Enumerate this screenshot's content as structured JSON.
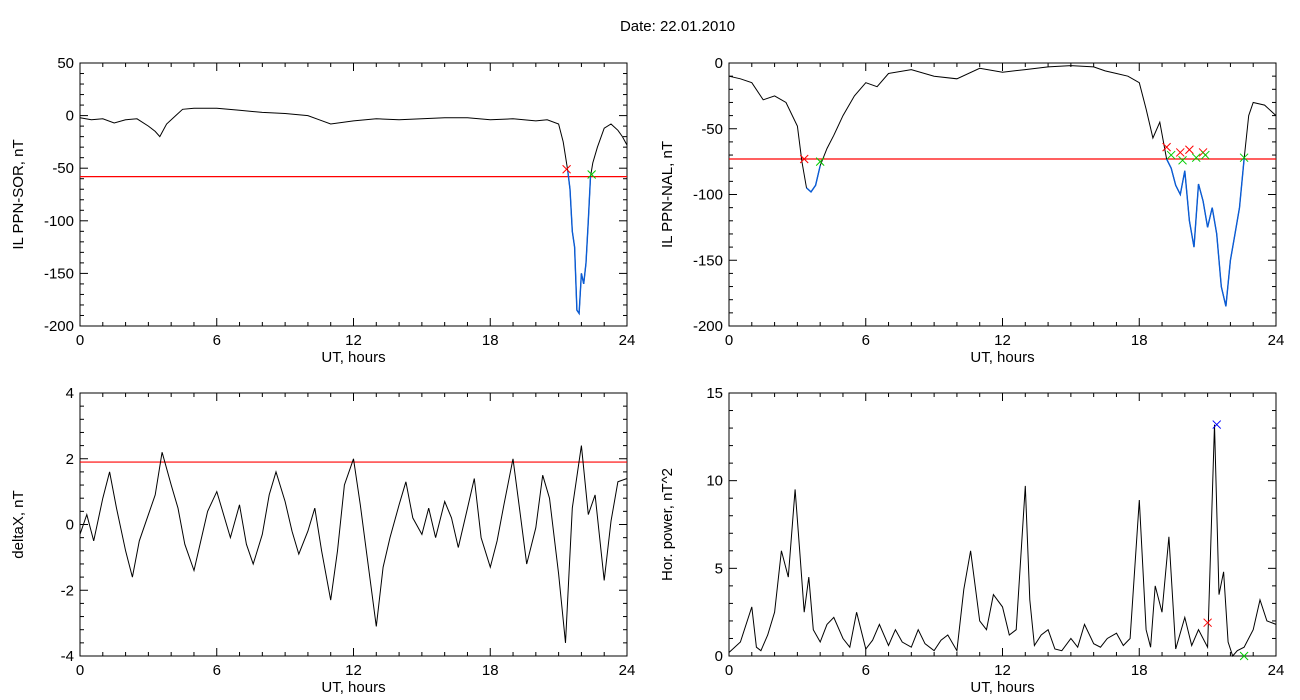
{
  "figure": {
    "date_label": "Date:",
    "date_value": "22.01.2010",
    "colors": {
      "trace": "#000000",
      "threshold": "#ff0000",
      "event": "#0a5cd6",
      "marker_start": "#ff0000",
      "marker_end": "#00cc00",
      "marker_peak": "#0000ff"
    }
  },
  "chart_data": [
    {
      "type": "line",
      "panel": "top-left",
      "xlabel": "UT, hours",
      "ylabel": "IL PPN-SOR, nT",
      "xlim": [
        0,
        24
      ],
      "ylim": [
        -200,
        50
      ],
      "xticks": [
        0,
        6,
        12,
        18,
        24
      ],
      "yticks": [
        50,
        0,
        -50,
        -100,
        -150,
        -200
      ],
      "threshold": -58,
      "series": [
        {
          "x": [
            0,
            0.5,
            1,
            1.5,
            2,
            2.5,
            3,
            3.3,
            3.5,
            3.8,
            4.2,
            4.5,
            5,
            6,
            7,
            8,
            9,
            10,
            10.5,
            11,
            12,
            13,
            14,
            15,
            16,
            17,
            18,
            19,
            20,
            20.5,
            21,
            21.2,
            21.4,
            21.5,
            21.6,
            21.7,
            21.8,
            21.9,
            22,
            22.1,
            22.2,
            22.3,
            22.4,
            22.5,
            22.7,
            23,
            23.3,
            23.6,
            23.8,
            24
          ],
          "y": [
            -2,
            -4,
            -3,
            -7,
            -4,
            -3,
            -10,
            -15,
            -20,
            -8,
            0,
            6,
            7,
            7,
            5,
            3,
            2,
            0,
            -4,
            -8,
            -5,
            -3,
            -4,
            -3,
            -2,
            -2,
            -4,
            -3,
            -5,
            -4,
            -8,
            -25,
            -52,
            -70,
            -110,
            -125,
            -185,
            -188,
            -150,
            -160,
            -140,
            -100,
            -58,
            -45,
            -30,
            -12,
            -8,
            -14,
            -20,
            -28
          ]
        }
      ],
      "event_segments": [
        [
          21.4,
          22.4
        ]
      ],
      "markers": [
        {
          "x": 21.35,
          "y": -51,
          "type": "start"
        },
        {
          "x": 22.45,
          "y": -56,
          "type": "end"
        }
      ]
    },
    {
      "type": "line",
      "panel": "top-right",
      "xlabel": "UT, hours",
      "ylabel": "IL PPN-NAL, nT",
      "xlim": [
        0,
        24
      ],
      "ylim": [
        -200,
        0
      ],
      "xticks": [
        0,
        6,
        12,
        18,
        24
      ],
      "yticks": [
        0,
        -50,
        -100,
        -150,
        -200
      ],
      "threshold": -73,
      "series": [
        {
          "x": [
            0,
            0.5,
            1,
            1.5,
            2,
            2.5,
            3,
            3.2,
            3.4,
            3.6,
            3.8,
            4,
            4.3,
            4.6,
            5,
            5.5,
            6,
            6.5,
            7,
            8,
            9,
            10,
            11,
            12,
            13,
            14,
            15,
            16,
            16.5,
            17,
            17.5,
            18,
            18.3,
            18.6,
            18.9,
            19.2,
            19.4,
            19.6,
            19.8,
            20,
            20.2,
            20.4,
            20.6,
            20.8,
            21,
            21.2,
            21.4,
            21.6,
            21.8,
            22,
            22.2,
            22.4,
            22.6,
            22.8,
            23,
            23.5,
            24
          ],
          "y": [
            -10,
            -12,
            -15,
            -28,
            -25,
            -30,
            -48,
            -75,
            -95,
            -98,
            -93,
            -78,
            -65,
            -55,
            -40,
            -25,
            -15,
            -18,
            -8,
            -5,
            -10,
            -12,
            -4,
            -7,
            -5,
            -3,
            -2,
            -3,
            -6,
            -8,
            -10,
            -15,
            -35,
            -57,
            -45,
            -73,
            -80,
            -93,
            -100,
            -82,
            -120,
            -140,
            -92,
            -105,
            -125,
            -110,
            -130,
            -170,
            -185,
            -150,
            -130,
            -110,
            -73,
            -40,
            -30,
            -32,
            -40
          ]
        }
      ],
      "event_segments": [
        [
          3.3,
          4.0
        ],
        [
          19.2,
          22.6
        ]
      ],
      "markers": [
        {
          "x": 3.3,
          "y": -73,
          "type": "start"
        },
        {
          "x": 4.0,
          "y": -75,
          "type": "end"
        },
        {
          "x": 19.2,
          "y": -64,
          "type": "start"
        },
        {
          "x": 19.4,
          "y": -70,
          "type": "end"
        },
        {
          "x": 19.8,
          "y": -68,
          "type": "start"
        },
        {
          "x": 19.9,
          "y": -74,
          "type": "end"
        },
        {
          "x": 20.2,
          "y": -66,
          "type": "start"
        },
        {
          "x": 20.5,
          "y": -72,
          "type": "end"
        },
        {
          "x": 20.8,
          "y": -68,
          "type": "start"
        },
        {
          "x": 20.9,
          "y": -70,
          "type": "end"
        },
        {
          "x": 22.6,
          "y": -72,
          "type": "end"
        }
      ]
    },
    {
      "type": "line",
      "panel": "bottom-left",
      "xlabel": "UT, hours",
      "ylabel": "deltaX, nT",
      "xlim": [
        0,
        24
      ],
      "ylim": [
        -4,
        4
      ],
      "xticks": [
        0,
        6,
        12,
        18,
        24
      ],
      "yticks": [
        4,
        2,
        0,
        -2,
        -4
      ],
      "threshold": 1.9,
      "series": [
        {
          "x": [
            0,
            0.3,
            0.6,
            1,
            1.3,
            1.6,
            2,
            2.3,
            2.6,
            3,
            3.3,
            3.6,
            4,
            4.3,
            4.6,
            5,
            5.3,
            5.6,
            6,
            6.3,
            6.6,
            7,
            7.3,
            7.6,
            8,
            8.3,
            8.6,
            9,
            9.3,
            9.6,
            10,
            10.3,
            10.6,
            11,
            11.3,
            11.6,
            12,
            12.3,
            12.6,
            13,
            13.3,
            13.6,
            14,
            14.3,
            14.6,
            15,
            15.3,
            15.6,
            16,
            16.3,
            16.6,
            17,
            17.3,
            17.6,
            18,
            18.3,
            18.6,
            19,
            19.3,
            19.6,
            20,
            20.3,
            20.6,
            21,
            21.3,
            21.6,
            22,
            22.3,
            22.6,
            23,
            23.3,
            23.6,
            24
          ],
          "y": [
            -0.3,
            0.3,
            -0.5,
            0.8,
            1.6,
            0.5,
            -0.8,
            -1.6,
            -0.5,
            0.3,
            0.9,
            2.2,
            1.2,
            0.5,
            -0.6,
            -1.4,
            -0.5,
            0.4,
            1.0,
            0.3,
            -0.4,
            0.6,
            -0.6,
            -1.2,
            -0.3,
            0.9,
            1.6,
            0.7,
            -0.2,
            -0.9,
            -0.2,
            0.5,
            -0.8,
            -2.3,
            -0.8,
            1.2,
            2.0,
            0.6,
            -1.0,
            -3.1,
            -1.3,
            -0.4,
            0.6,
            1.3,
            0.2,
            -0.3,
            0.5,
            -0.4,
            0.7,
            0.2,
            -0.7,
            0.5,
            1.4,
            -0.4,
            -1.3,
            -0.5,
            0.6,
            2.0,
            0.4,
            -1.2,
            -0.1,
            1.5,
            0.8,
            -1.5,
            -3.6,
            0.5,
            2.4,
            0.3,
            0.9,
            -1.7,
            0.1,
            1.3,
            1.4
          ]
        }
      ],
      "event_segments": [],
      "markers": []
    },
    {
      "type": "line",
      "panel": "bottom-right",
      "xlabel": "UT, hours",
      "ylabel": "Hor. power, nT^2",
      "xlim": [
        0,
        24
      ],
      "ylim": [
        0,
        15
      ],
      "xticks": [
        0,
        6,
        12,
        18,
        24
      ],
      "yticks": [
        15,
        10,
        5,
        0
      ],
      "threshold": null,
      "series": [
        {
          "x": [
            0,
            0.5,
            1,
            1.2,
            1.4,
            1.7,
            2,
            2.3,
            2.6,
            2.9,
            3.1,
            3.3,
            3.5,
            3.7,
            4,
            4.3,
            4.6,
            5,
            5.3,
            5.6,
            6,
            6.3,
            6.6,
            7,
            7.3,
            7.6,
            8,
            8.3,
            8.6,
            9,
            9.3,
            9.6,
            10,
            10.3,
            10.6,
            11,
            11.3,
            11.6,
            12,
            12.3,
            12.6,
            13,
            13.2,
            13.4,
            13.7,
            14,
            14.3,
            14.6,
            15,
            15.3,
            15.6,
            16,
            16.3,
            16.6,
            17,
            17.3,
            17.6,
            18,
            18.3,
            18.5,
            18.7,
            19,
            19.3,
            19.6,
            20,
            20.3,
            20.6,
            21,
            21.3,
            21.5,
            21.7,
            21.9,
            22.1,
            22.3,
            22.6,
            23,
            23.3,
            23.6,
            24
          ],
          "y": [
            0.2,
            0.8,
            2.8,
            0.5,
            0.3,
            1.2,
            2.5,
            6.0,
            4.5,
            9.5,
            6.0,
            2.5,
            4.5,
            1.5,
            0.8,
            1.8,
            2.2,
            1.0,
            0.5,
            2.5,
            0.4,
            0.9,
            1.8,
            0.6,
            1.5,
            0.8,
            0.5,
            1.5,
            0.7,
            0.3,
            0.9,
            1.2,
            0.3,
            3.8,
            6.0,
            2.0,
            1.5,
            3.5,
            2.8,
            1.2,
            1.5,
            9.7,
            3.2,
            0.6,
            1.2,
            1.5,
            0.4,
            0.3,
            1.0,
            0.5,
            1.8,
            0.7,
            0.5,
            1.0,
            1.3,
            0.6,
            1.0,
            8.9,
            1.5,
            0.5,
            4.0,
            2.5,
            6.8,
            0.4,
            2.2,
            0.6,
            1.5,
            0.5,
            13.2,
            3.5,
            4.8,
            0.8,
            0.0,
            0.3,
            0.5,
            1.5,
            3.2,
            2.0,
            1.8
          ]
        }
      ],
      "event_segments": [],
      "markers": [
        {
          "x": 21.4,
          "y": 13.2,
          "type": "peak"
        },
        {
          "x": 21.0,
          "y": 1.9,
          "type": "start"
        },
        {
          "x": 22.6,
          "y": 0.0,
          "type": "end"
        }
      ]
    }
  ]
}
